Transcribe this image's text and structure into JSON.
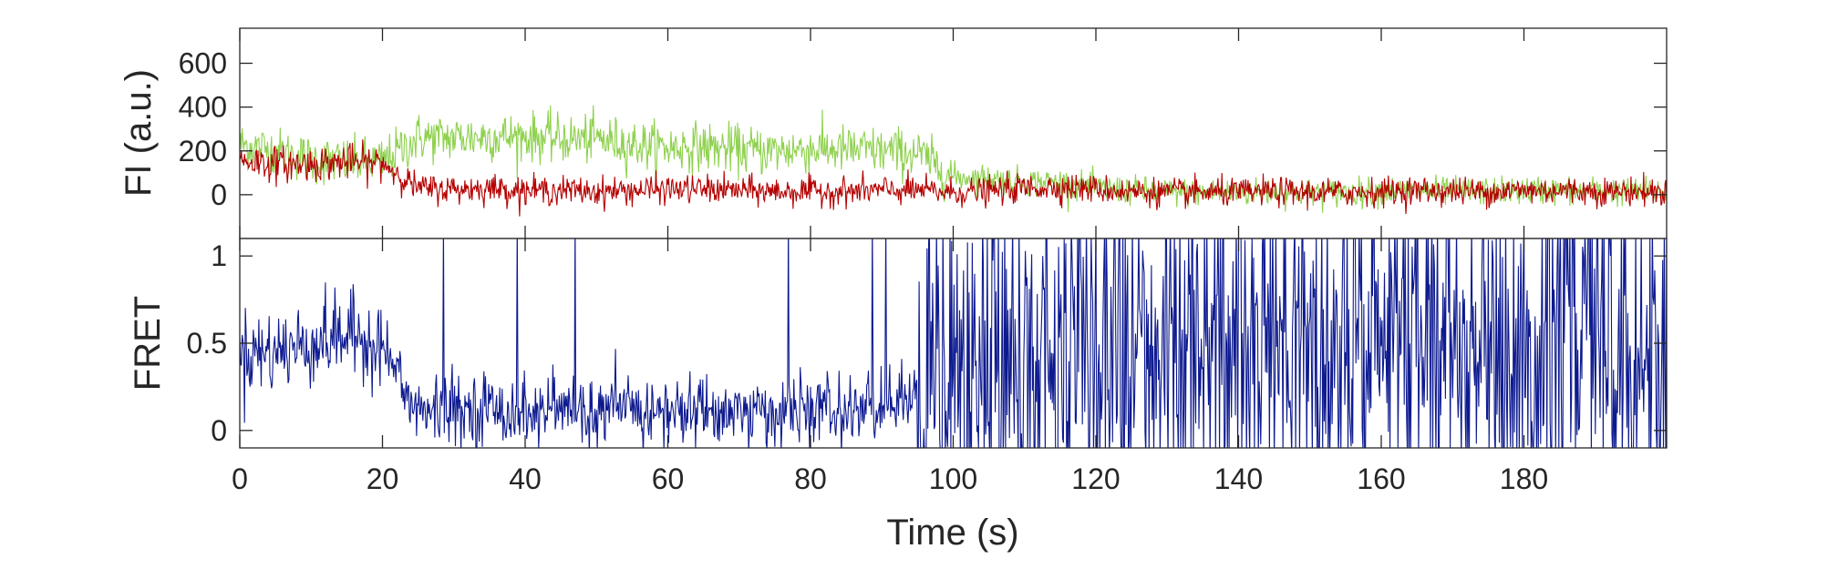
{
  "chart_data": [
    {
      "type": "line",
      "panel": "top",
      "title": "",
      "xlabel": "",
      "ylabel": "FI (a.u.)",
      "xlim": [
        0,
        200
      ],
      "ylim": [
        -200,
        760
      ],
      "yticks": [
        0,
        200,
        400,
        600
      ],
      "ytick_labels": [
        "0",
        "200",
        "400",
        "600"
      ],
      "grid": false,
      "legend": "none",
      "colors": {
        "donor": "#8fd14f",
        "acceptor": "#b40000"
      },
      "series": [
        {
          "color": "#8fd14f",
          "x": [
            0,
            5,
            10,
            15,
            20,
            25,
            30,
            35,
            40,
            45,
            50,
            55,
            60,
            65,
            70,
            75,
            80,
            85,
            90,
            95,
            100,
            105,
            110,
            115,
            120,
            125,
            130,
            135,
            140,
            145,
            150,
            155,
            160,
            165,
            170,
            175,
            180,
            185,
            190,
            195,
            200
          ],
          "y": [
            230,
            200,
            160,
            150,
            150,
            260,
            260,
            265,
            265,
            255,
            255,
            230,
            215,
            220,
            205,
            200,
            210,
            205,
            200,
            190,
            80,
            75,
            60,
            55,
            30,
            20,
            10,
            10,
            10,
            15,
            10,
            10,
            15,
            20,
            15,
            15,
            20,
            20,
            15,
            15,
            10
          ]
        },
        {
          "color": "#b40000",
          "x": [
            0,
            5,
            10,
            15,
            20,
            25,
            30,
            35,
            40,
            45,
            50,
            55,
            60,
            65,
            70,
            75,
            80,
            85,
            90,
            95,
            100,
            105,
            110,
            115,
            120,
            125,
            130,
            135,
            140,
            145,
            150,
            155,
            160,
            165,
            170,
            175,
            180,
            185,
            190,
            195,
            200
          ],
          "y": [
            160,
            140,
            140,
            150,
            145,
            30,
            25,
            30,
            20,
            20,
            15,
            20,
            25,
            25,
            20,
            15,
            15,
            15,
            20,
            20,
            10,
            15,
            30,
            35,
            25,
            15,
            10,
            10,
            10,
            15,
            10,
            10,
            15,
            20,
            15,
            15,
            20,
            20,
            15,
            15,
            10
          ]
        }
      ]
    },
    {
      "type": "line",
      "panel": "bottom",
      "title": "",
      "xlabel": "Time (s)",
      "ylabel": "FRET",
      "xlim": [
        0,
        200
      ],
      "ylim": [
        -0.1,
        1.1
      ],
      "xticks": [
        0,
        20,
        40,
        60,
        80,
        100,
        120,
        140,
        160,
        180
      ],
      "xtick_labels": [
        "0",
        "20",
        "40",
        "60",
        "80",
        "100",
        "120",
        "140",
        "160",
        "180"
      ],
      "yticks": [
        0,
        0.5,
        1
      ],
      "ytick_labels": [
        "0",
        "0.5",
        "1"
      ],
      "grid": false,
      "legend": "none",
      "colors": {
        "fret": "#0d1a8f"
      },
      "series": [
        {
          "color": "#0d1a8f",
          "x": [
            0,
            5,
            10,
            15,
            20,
            25,
            30,
            35,
            40,
            45,
            50,
            55,
            60,
            65,
            70,
            75,
            80,
            85,
            90,
            95,
            100,
            105,
            110,
            115,
            120,
            125,
            130,
            135,
            140,
            145,
            150,
            155,
            160,
            165,
            170,
            175,
            180,
            185,
            190,
            195,
            200
          ],
          "y": [
            0.45,
            0.45,
            0.5,
            0.55,
            0.5,
            0.1,
            0.12,
            0.13,
            0.1,
            0.12,
            0.1,
            0.12,
            0.1,
            0.12,
            0.1,
            0.1,
            0.12,
            0.1,
            0.15,
            0.2,
            0.3,
            0.35,
            0.4,
            0.45,
            0.45,
            0.5,
            0.5,
            0.5,
            0.5,
            0.5,
            0.5,
            0.5,
            0.5,
            0.5,
            0.5,
            0.5,
            0.5,
            0.5,
            0.5,
            0.5,
            0.5
          ]
        }
      ]
    }
  ]
}
